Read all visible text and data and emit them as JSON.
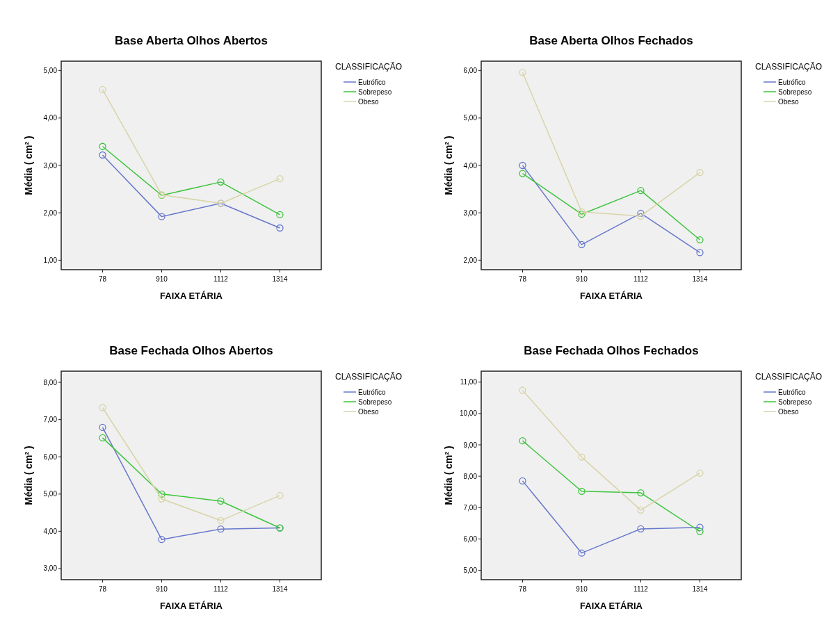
{
  "chart_data": [
    {
      "type": "line",
      "title": "Base Aberta Olhos Abertos",
      "xlabel": "FAIXA ETÁRIA",
      "ylabel": "Média ( cm² )",
      "legend_title": "CLASSIFICAÇÃO",
      "categories": [
        "78",
        "910",
        "1112",
        "1314"
      ],
      "ylim": [
        0.8,
        5.2
      ],
      "yticks": [
        {
          "value": 1,
          "label": "1,00"
        },
        {
          "value": 2,
          "label": "2,00"
        },
        {
          "value": 3,
          "label": "3,00"
        },
        {
          "value": 4,
          "label": "4,00"
        },
        {
          "value": 5,
          "label": "5,00"
        }
      ],
      "grid": false,
      "legend": "top right",
      "marker": "circle",
      "line_style": "solid",
      "series": [
        {
          "name": "Eutrófico",
          "color": "#6677cc",
          "values": [
            3.22,
            1.92,
            2.2,
            1.68
          ]
        },
        {
          "name": "Sobrepeso",
          "color": "#3cc43c",
          "values": [
            3.4,
            2.37,
            2.65,
            1.96
          ]
        },
        {
          "name": "Obeso",
          "color": "#d8d4a8",
          "values": [
            4.6,
            2.38,
            2.2,
            2.72
          ]
        }
      ]
    },
    {
      "type": "line",
      "title": "Base Aberta Olhos Fechados",
      "xlabel": "FAIXA ETÁRIA",
      "ylabel": "Média ( cm² )",
      "legend_title": "CLASSIFICAÇÃO",
      "categories": [
        "78",
        "910",
        "1112",
        "1314"
      ],
      "ylim": [
        1.8,
        6.2
      ],
      "yticks": [
        {
          "value": 2,
          "label": "2,00"
        },
        {
          "value": 3,
          "label": "3,00"
        },
        {
          "value": 4,
          "label": "4,00"
        },
        {
          "value": 5,
          "label": "5,00"
        },
        {
          "value": 6,
          "label": "6,00"
        }
      ],
      "grid": false,
      "legend": "top right",
      "marker": "circle",
      "line_style": "solid",
      "series": [
        {
          "name": "Eutrófico",
          "color": "#6677cc",
          "values": [
            4.0,
            2.33,
            2.99,
            2.16
          ]
        },
        {
          "name": "Sobrepeso",
          "color": "#3cc43c",
          "values": [
            3.83,
            2.97,
            3.47,
            2.43
          ]
        },
        {
          "name": "Obeso",
          "color": "#d8d4a8",
          "values": [
            5.96,
            3.02,
            2.93,
            3.85
          ]
        }
      ]
    },
    {
      "type": "line",
      "title": "Base Fechada Olhos Abertos",
      "xlabel": "FAIXA ETÁRIA",
      "ylabel": "Média ( cm² )",
      "legend_title": "CLASSIFICAÇÃO",
      "categories": [
        "78",
        "910",
        "1112",
        "1314"
      ],
      "ylim": [
        2.7,
        8.3
      ],
      "yticks": [
        {
          "value": 3,
          "label": "3,00"
        },
        {
          "value": 4,
          "label": "4,00"
        },
        {
          "value": 5,
          "label": "5,00"
        },
        {
          "value": 6,
          "label": "6,00"
        },
        {
          "value": 7,
          "label": "7,00"
        },
        {
          "value": 8,
          "label": "8,00"
        }
      ],
      "grid": false,
      "legend": "top right",
      "marker": "circle",
      "line_style": "solid",
      "series": [
        {
          "name": "Eutrófico",
          "color": "#6677cc",
          "values": [
            6.79,
            3.78,
            4.06,
            4.09
          ]
        },
        {
          "name": "Sobrepeso",
          "color": "#3cc43c",
          "values": [
            6.51,
            5.0,
            4.81,
            4.09
          ]
        },
        {
          "name": "Obeso",
          "color": "#d8d4a8",
          "values": [
            7.32,
            4.87,
            4.29,
            4.96
          ]
        }
      ]
    },
    {
      "type": "line",
      "title": "Base Fechada Olhos Fechados",
      "xlabel": "FAIXA ETÁRIA",
      "ylabel": "Média ( cm² )",
      "legend_title": "CLASSIFICAÇÃO",
      "categories": [
        "78",
        "910",
        "1112",
        "1314"
      ],
      "ylim": [
        4.7,
        11.35
      ],
      "yticks": [
        {
          "value": 5,
          "label": "5,00"
        },
        {
          "value": 6,
          "label": "6,00"
        },
        {
          "value": 7,
          "label": "7,00"
        },
        {
          "value": 8,
          "label": "8,00"
        },
        {
          "value": 9,
          "label": "9,00"
        },
        {
          "value": 10,
          "label": "10,00"
        },
        {
          "value": 11,
          "label": "11,00"
        }
      ],
      "grid": false,
      "legend": "top right",
      "marker": "circle",
      "line_style": "solid",
      "series": [
        {
          "name": "Eutrófico",
          "color": "#6677cc",
          "values": [
            7.85,
            5.55,
            6.32,
            6.37
          ]
        },
        {
          "name": "Sobrepeso",
          "color": "#3cc43c",
          "values": [
            9.13,
            7.52,
            7.47,
            6.24
          ]
        },
        {
          "name": "Obeso",
          "color": "#d8d4a8",
          "values": [
            10.74,
            8.61,
            6.92,
            8.1
          ]
        }
      ]
    }
  ]
}
